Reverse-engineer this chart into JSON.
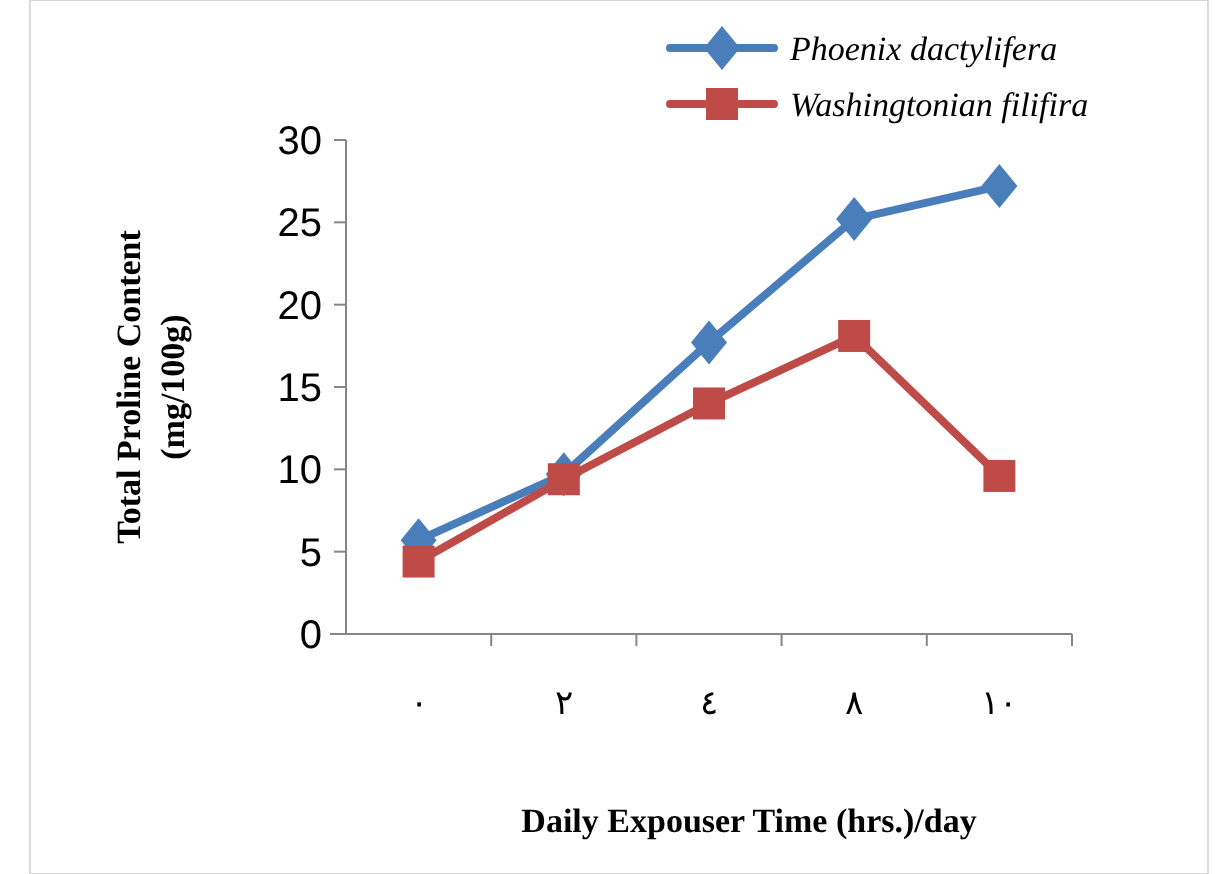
{
  "chart_data": {
    "type": "line",
    "xlabel": "Daily Expouser Time (hrs.)/day",
    "ylabel": "Total Proline Content\n(mg/100g)",
    "categories": [
      "٠",
      "٢",
      "٤",
      "٨",
      "١٠"
    ],
    "series": [
      {
        "name": "Phoenix dactylifera",
        "color": "#4a7ebb",
        "marker": "diamond",
        "values": [
          5.7,
          9.7,
          17.7,
          25.2,
          27.2
        ]
      },
      {
        "name": "Washingtonian filifira",
        "color": "#be4b48",
        "marker": "square",
        "values": [
          4.4,
          9.4,
          14.0,
          18.1,
          9.6
        ]
      }
    ],
    "ylim": [
      0,
      30
    ],
    "yticks": [
      0,
      5,
      10,
      15,
      20,
      25,
      30
    ],
    "grid": false,
    "legend": "top right"
  }
}
